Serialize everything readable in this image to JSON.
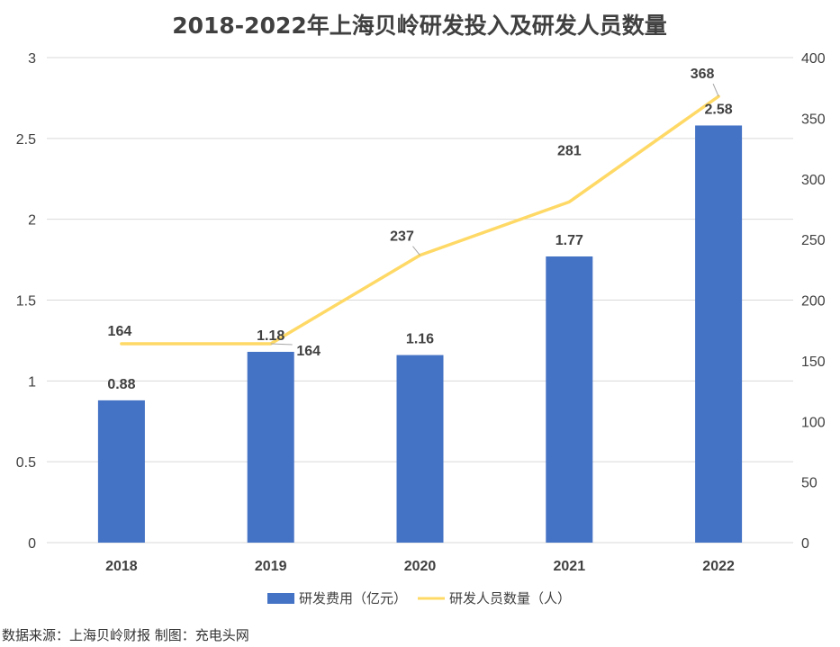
{
  "chart_data": {
    "type": "bar",
    "title": "2018-2022年上海贝岭研发投入及研发人员数量",
    "categories": [
      "2018",
      "2019",
      "2020",
      "2021",
      "2022"
    ],
    "series": [
      {
        "name": "研发费用（亿元）",
        "type": "bar",
        "axis": "left",
        "values": [
          0.88,
          1.18,
          1.16,
          1.77,
          2.58
        ],
        "labels": [
          "0.88",
          "1.18",
          "1.16",
          "1.77",
          "2.58"
        ],
        "color": "#4472C4"
      },
      {
        "name": "研发人员数量（人）",
        "type": "line",
        "axis": "right",
        "values": [
          164,
          164,
          237,
          281,
          368
        ],
        "labels": [
          "164",
          "164",
          "237",
          "281",
          "368"
        ],
        "color": "#FFD966"
      }
    ],
    "ylim_left": [
      0,
      3
    ],
    "yticks_left": [
      "0",
      "0.5",
      "1",
      "1.5",
      "2",
      "2.5",
      "3"
    ],
    "ylim_right": [
      0,
      400
    ],
    "yticks_right": [
      "0",
      "50",
      "100",
      "150",
      "200",
      "250",
      "300",
      "350",
      "400"
    ],
    "grid": true,
    "legend": "bottom"
  },
  "source_note": "数据来源：上海贝岭财报  制图：充电头网"
}
